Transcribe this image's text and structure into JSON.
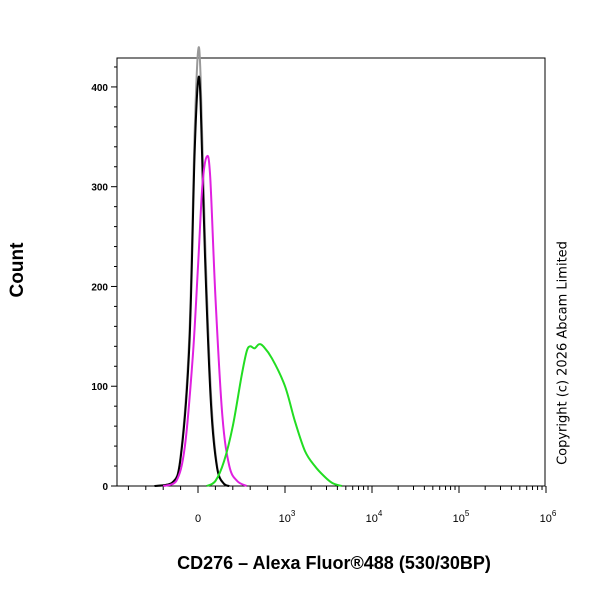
{
  "chart_data": {
    "type": "line",
    "ylabel": "Count",
    "xlabel": "CD276 – Alexa Fluor®488 (530/30BP)",
    "ylim": [
      0,
      430
    ],
    "y_ticks": [
      0,
      100,
      200,
      300,
      400
    ],
    "x_ticks": [
      {
        "base": "0",
        "exp": ""
      },
      {
        "base": "10",
        "exp": "3"
      },
      {
        "base": "10",
        "exp": "4"
      },
      {
        "base": "10",
        "exp": "5"
      },
      {
        "base": "10",
        "exp": "6"
      }
    ],
    "series": [
      {
        "color": "#999999",
        "points": [
          [
            -500,
            0
          ],
          [
            -300,
            3
          ],
          [
            -200,
            30
          ],
          [
            -100,
            150
          ],
          [
            -40,
            350
          ],
          [
            0,
            435
          ],
          [
            30,
            410
          ],
          [
            80,
            250
          ],
          [
            150,
            90
          ],
          [
            220,
            20
          ],
          [
            300,
            2
          ],
          [
            360,
            0
          ]
        ]
      },
      {
        "color": "#000000",
        "points": [
          [
            -500,
            0
          ],
          [
            -300,
            3
          ],
          [
            -200,
            28
          ],
          [
            -100,
            140
          ],
          [
            -40,
            330
          ],
          [
            0,
            405
          ],
          [
            30,
            385
          ],
          [
            80,
            230
          ],
          [
            150,
            80
          ],
          [
            220,
            18
          ],
          [
            300,
            2
          ],
          [
            360,
            0
          ]
        ]
      },
      {
        "color": "#e020e0",
        "points": [
          [
            -400,
            0
          ],
          [
            -250,
            5
          ],
          [
            -150,
            40
          ],
          [
            -60,
            130
          ],
          [
            0,
            220
          ],
          [
            50,
            300
          ],
          [
            100,
            330
          ],
          [
            140,
            310
          ],
          [
            200,
            190
          ],
          [
            280,
            70
          ],
          [
            360,
            20
          ],
          [
            450,
            5
          ],
          [
            560,
            0
          ]
        ]
      },
      {
        "color": "#22dd22",
        "points": [
          [
            100,
            0
          ],
          [
            200,
            5
          ],
          [
            300,
            25
          ],
          [
            400,
            60
          ],
          [
            500,
            110
          ],
          [
            560,
            135
          ],
          [
            600,
            140
          ],
          [
            650,
            138
          ],
          [
            700,
            142
          ],
          [
            750,
            140
          ],
          [
            850,
            128
          ],
          [
            1000,
            100
          ],
          [
            1300,
            65
          ],
          [
            1700,
            35
          ],
          [
            2200,
            20
          ],
          [
            2800,
            10
          ],
          [
            3500,
            3
          ],
          [
            4500,
            0
          ]
        ]
      }
    ]
  },
  "copyright": "Copyright (c) 2026 Abcam Limited"
}
